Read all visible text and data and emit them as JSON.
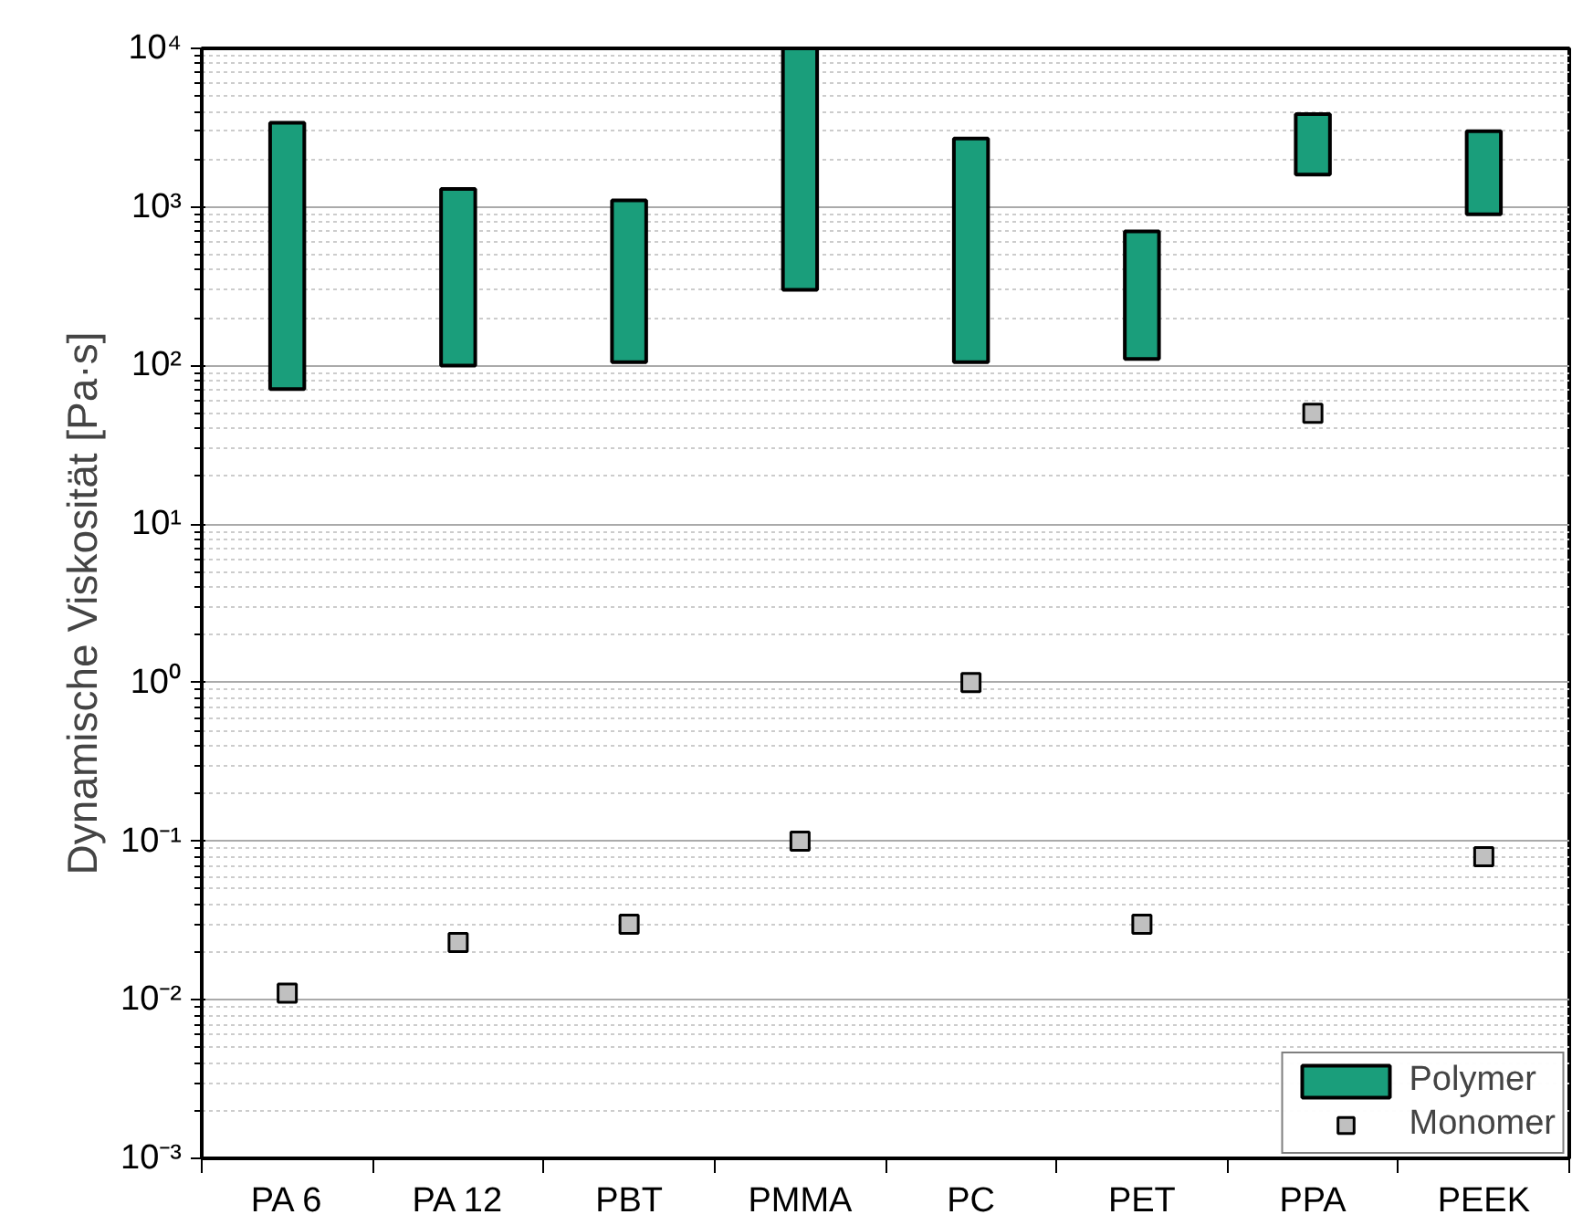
{
  "chart_data": {
    "type": "bar",
    "ylabel": "Dynamische Viskosität [Pa·s]",
    "categories": [
      "PA 6",
      "PA 12",
      "PBT",
      "PMMA",
      "PC",
      "PET",
      "PPA",
      "PEEK"
    ],
    "series": [
      {
        "name": "Polymer",
        "color": "#1a9e7b",
        "base": [
          71,
          100,
          105,
          300,
          105,
          110,
          1600,
          900
        ],
        "values": [
          3329,
          1200,
          995,
          9700,
          2595,
          590,
          2250,
          2100
        ]
      },
      {
        "name": "Monomer",
        "color": "#c0c0c0",
        "type": "scatter",
        "marker": "square",
        "values": [
          0.011,
          0.023,
          0.03,
          0.1,
          1,
          0.03,
          50,
          0.08
        ]
      }
    ],
    "log": true,
    "ylim": [
      0.001,
      10000
    ],
    "yticks": [
      {
        "value": 0.001,
        "label": "10⁻³"
      },
      {
        "value": 0.01,
        "label": "10⁻²"
      },
      {
        "value": 0.1,
        "label": "10⁻¹"
      },
      {
        "value": 1,
        "label": "10⁰"
      },
      {
        "value": 10,
        "label": "10¹"
      },
      {
        "value": 100,
        "label": "10²"
      },
      {
        "value": 1000,
        "label": "10³"
      },
      {
        "value": 10000,
        "label": "10⁴"
      }
    ],
    "grid": "y",
    "legend": "bottom right"
  }
}
